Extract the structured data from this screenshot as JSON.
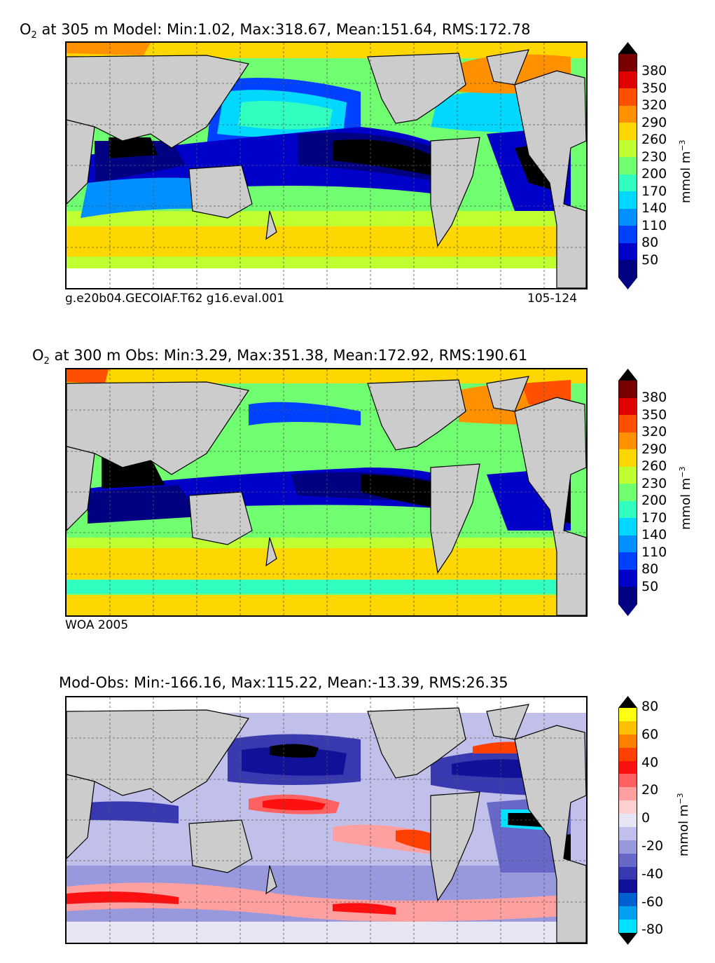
{
  "panels": [
    {
      "title_prefix": "O",
      "title_sub": "2",
      "title_rest": "  at 305 m Model: Min:1.02, Max:318.67, Mean:151.64, RMS:172.78",
      "caption_left": "g.e20b04.GECOIAF.T62 g16.eval.001",
      "caption_right": "105-124"
    },
    {
      "title_prefix": "O",
      "title_sub": "2",
      "title_rest": "  at 300 m Obs: Min:3.29, Max:351.38, Mean:172.92, RMS:190.61",
      "caption_left": "WOA 2005",
      "caption_right": ""
    },
    {
      "title_prefix": "",
      "title_sub": "",
      "title_rest": "Mod-Obs: Min:-166.16, Max:115.22, Mean:-13.39, RMS:26.35",
      "caption_left": "",
      "caption_right": ""
    }
  ],
  "colorbar_o2": {
    "unit": "mmol m",
    "unit_sup": "−3",
    "ticks": [
      "380",
      "350",
      "320",
      "290",
      "260",
      "230",
      "200",
      "170",
      "140",
      "110",
      "80",
      "50"
    ],
    "colors": [
      "#7a0000",
      "#e00000",
      "#ff4f00",
      "#ff9000",
      "#ffd700",
      "#c0ff30",
      "#70ff70",
      "#30ffc0",
      "#00d8ff",
      "#0090ff",
      "#0040ff",
      "#0000c8",
      "#000080"
    ]
  },
  "colorbar_diff": {
    "unit": "mmol m",
    "unit_sup": "−3",
    "ticks": [
      "80",
      "60",
      "40",
      "20",
      "0",
      "-20",
      "-40",
      "-60",
      "-80"
    ],
    "colors": [
      "#ffff10",
      "#ffc000",
      "#ff8000",
      "#ff4000",
      "#ff1010",
      "#ff6060",
      "#ffa0a0",
      "#ffd0d0",
      "#e6e6f5",
      "#c0c0ea",
      "#9898dc",
      "#6868c8",
      "#3838b0",
      "#101098",
      "#0060d0",
      "#00a0f0",
      "#00e0ff"
    ]
  },
  "colors": {
    "land": "#cccccc",
    "frame": "#000000",
    "black_region": "#000000"
  }
}
